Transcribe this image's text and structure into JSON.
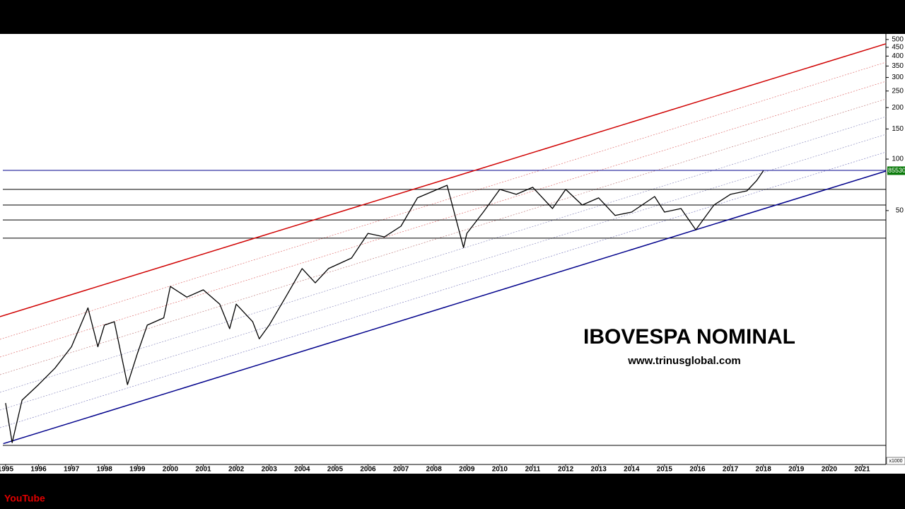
{
  "chart_data": {
    "type": "line",
    "title": "IBOVESPA NOMINAL",
    "subtitle": "www.trinusglobal.com",
    "axis_unit": "x1000",
    "log_y": true,
    "xlim": [
      1994.83,
      2021.72
    ],
    "xticks": [
      1995,
      1996,
      1997,
      1998,
      1999,
      2000,
      2001,
      2002,
      2003,
      2004,
      2005,
      2006,
      2007,
      2008,
      2009,
      2010,
      2011,
      2012,
      2013,
      2014,
      2015,
      2016,
      2017,
      2018,
      2019,
      2020,
      2021
    ],
    "ylim": [
      1.64,
      539
    ],
    "yticks": [
      50,
      100,
      150,
      200,
      250,
      300,
      350,
      400,
      450,
      500
    ],
    "series": [
      {
        "color": "#000000",
        "x": [
          1995.0,
          1995.2,
          1995.5,
          1996.0,
          1996.5,
          1997.0,
          1997.5,
          1997.8,
          1998.0,
          1998.3,
          1998.7,
          1999.0,
          1999.3,
          1999.8,
          2000.0,
          2000.5,
          2001.0,
          2001.5,
          2001.8,
          2002.0,
          2002.5,
          2002.7,
          2003.0,
          2003.5,
          2004.0,
          2004.4,
          2004.8,
          2005.5,
          2006.0,
          2006.5,
          2007.0,
          2007.5,
          2008.0,
          2008.4,
          2008.9,
          2009.0,
          2009.5,
          2010.0,
          2010.5,
          2011.0,
          2011.6,
          2012.0,
          2012.5,
          2013.0,
          2013.5,
          2014.0,
          2014.7,
          2015.0,
          2015.5,
          2015.95,
          2016.5,
          2017.0,
          2017.5,
          2017.8,
          2018.0
        ],
        "values": [
          3.75,
          2.2,
          3.9,
          4.8,
          6.0,
          8.0,
          13.5,
          8.0,
          10.7,
          11.2,
          4.8,
          7.3,
          10.7,
          11.8,
          18.0,
          15.6,
          17.2,
          14.2,
          10.2,
          14.2,
          11.2,
          8.9,
          10.7,
          15.6,
          22.9,
          18.9,
          22.9,
          26.4,
          36.8,
          35.1,
          40.5,
          59.3,
          65.2,
          70.3,
          30.4,
          36.8,
          49.0,
          66.5,
          62.2,
          68.4,
          51.4,
          66.5,
          53.9,
          59.3,
          46.8,
          49.0,
          60.4,
          49.0,
          51.4,
          38.6,
          53.9,
          62.2,
          65.2,
          75.0,
          85.53
        ]
      }
    ],
    "last_value": {
      "value": 85.53,
      "label": "85530"
    },
    "trend_lines": [
      {
        "color": "#d00000",
        "x": [
          1994.83,
          2021.72
        ],
        "values": [
          12.0,
          472
        ]
      },
      {
        "color": "#00008b",
        "x": [
          1994.93,
          2021.72
        ],
        "values": [
          2.17,
          85.1
        ]
      }
    ],
    "hlines": {
      "color": "#000000",
      "values": [
        85.9,
        66.5,
        53.9,
        44.1,
        34.5,
        2.12
      ]
    },
    "watermark": "YouTube"
  }
}
